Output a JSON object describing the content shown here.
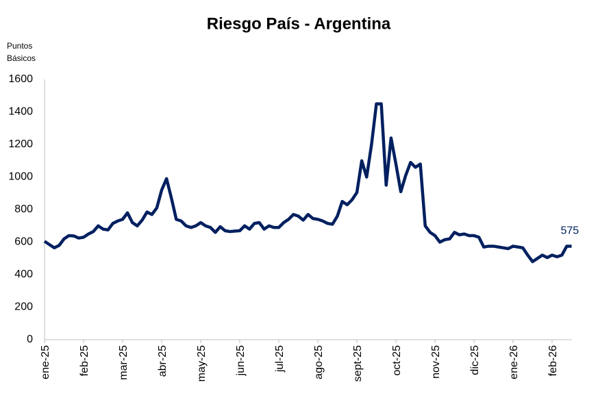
{
  "chart_data": {
    "type": "line",
    "title": "Riesgo País - Argentina",
    "ylabel": [
      "Puntos",
      "Básicos"
    ],
    "categories": [
      "ene-25",
      null,
      null,
      null,
      null,
      null,
      null,
      null,
      "feb-25",
      null,
      null,
      null,
      null,
      null,
      null,
      null,
      "mar-25",
      null,
      null,
      null,
      null,
      null,
      null,
      null,
      "abr-25",
      null,
      null,
      null,
      null,
      null,
      null,
      null,
      "may-25",
      null,
      null,
      null,
      null,
      null,
      null,
      null,
      "jun-25",
      null,
      null,
      null,
      null,
      null,
      null,
      null,
      "jul-25",
      null,
      null,
      null,
      null,
      null,
      null,
      null,
      "ago-25",
      null,
      null,
      null,
      null,
      null,
      null,
      null,
      "sept-25",
      null,
      null,
      null,
      null,
      null,
      null,
      null,
      "oct-25",
      null,
      null,
      null,
      null,
      null,
      null,
      null,
      "nov-25",
      null,
      null,
      null,
      null,
      null,
      null,
      null,
      "dic-25",
      null,
      null,
      null,
      null,
      null,
      null,
      null,
      "ene-26",
      null,
      null,
      null,
      null,
      null,
      null,
      null,
      "feb-26",
      null,
      null,
      null,
      null
    ],
    "series": [
      {
        "name": "Riesgo País",
        "color": "#002060",
        "values": [
          605,
          585,
          565,
          580,
          620,
          640,
          638,
          625,
          630,
          650,
          665,
          700,
          680,
          675,
          715,
          730,
          740,
          780,
          720,
          700,
          735,
          785,
          770,
          810,
          920,
          990,
          870,
          740,
          730,
          700,
          690,
          700,
          720,
          700,
          690,
          660,
          695,
          670,
          665,
          668,
          670,
          700,
          680,
          715,
          720,
          680,
          700,
          690,
          690,
          720,
          740,
          770,
          760,
          735,
          770,
          745,
          740,
          730,
          715,
          710,
          760,
          850,
          830,
          860,
          905,
          1100,
          1000,
          1200,
          1450,
          1450,
          950,
          1240,
          1080,
          910,
          1010,
          1090,
          1060,
          1080,
          700,
          660,
          640,
          600,
          615,
          620,
          660,
          645,
          650,
          640,
          640,
          630,
          570,
          575,
          575,
          570,
          565,
          560,
          575,
          570,
          565,
          520,
          480,
          500,
          520,
          505,
          520,
          510,
          520,
          575,
          575
        ]
      }
    ],
    "ylim": [
      0,
      1600
    ],
    "yticks": [
      0,
      200,
      400,
      600,
      800,
      1000,
      1200,
      1400,
      1600
    ],
    "grid": false
  }
}
